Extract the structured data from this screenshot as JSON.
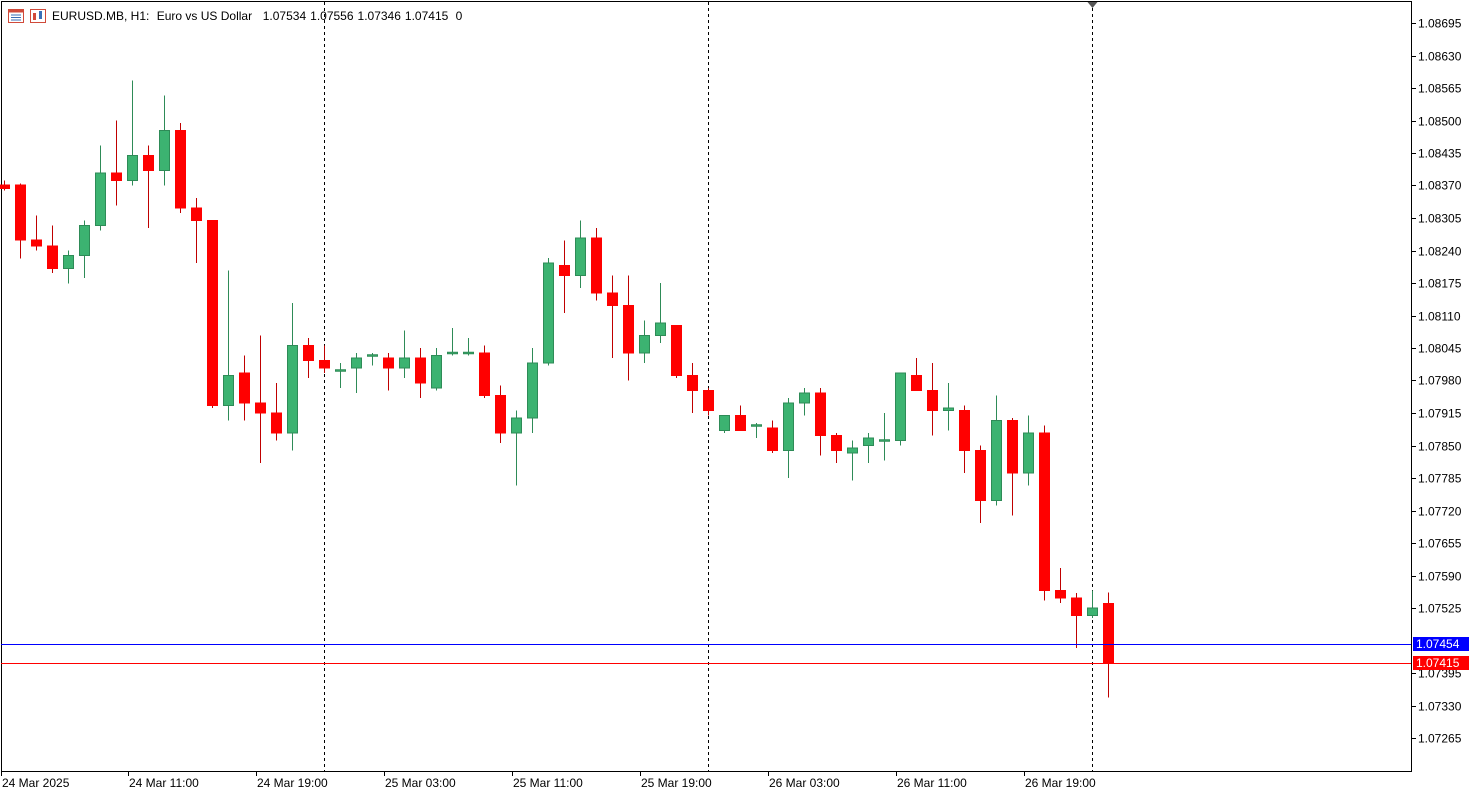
{
  "header": {
    "symbol": "EURUSD.MB, H1:",
    "description": "Euro vs US Dollar",
    "open": "1.07534",
    "high": "1.07556",
    "low": "1.07346",
    "close": "1.07415",
    "volume": "0",
    "icons": [
      "window-list-icon",
      "chart-type-icon"
    ]
  },
  "price_labels": {
    "bid": "1.07415",
    "ask": "1.07454"
  },
  "colors": {
    "bull": "#3cb371",
    "bear": "#ff0000",
    "wick_bull": "#2e8b57",
    "ask_line": "#0000ff",
    "bid_line": "#ff0000",
    "border": "#000000"
  },
  "chart_data": {
    "type": "candlestick",
    "symbol": "EURUSD.MB",
    "timeframe": "H1",
    "ylim": [
      1.0723,
      1.0873
    ],
    "yticks": [
      "1.08695",
      "1.08630",
      "1.08565",
      "1.08500",
      "1.08435",
      "1.08370",
      "1.08305",
      "1.08240",
      "1.08175",
      "1.08110",
      "1.08045",
      "1.07980",
      "1.07915",
      "1.07850",
      "1.07785",
      "1.07720",
      "1.07655",
      "1.07590",
      "1.07525",
      "1.07395",
      "1.07330",
      "1.07265"
    ],
    "xticks": [
      "24 Mar 2025",
      "24 Mar 11:00",
      "24 Mar 19:00",
      "25 Mar 03:00",
      "25 Mar 11:00",
      "25 Mar 19:00",
      "26 Mar 03:00",
      "26 Mar 11:00",
      "26 Mar 19:00"
    ],
    "separators": [
      "24 Mar 20:00",
      "25 Mar 20:00",
      "26 Mar 20:00"
    ],
    "hlines": [
      {
        "name": "ask",
        "price": 1.07454
      },
      {
        "name": "bid",
        "price": 1.07415
      }
    ],
    "candles": [
      {
        "t": "24 Mar 00:00",
        "o": 1.08371,
        "h": 1.0838,
        "l": 1.0836,
        "c": 1.08364
      },
      {
        "t": "24 Mar 01:00",
        "o": 1.08371,
        "h": 1.08374,
        "l": 1.08224,
        "c": 1.08261
      },
      {
        "t": "24 Mar 02:00",
        "o": 1.08261,
        "h": 1.0831,
        "l": 1.0824,
        "c": 1.08249
      },
      {
        "t": "24 Mar 03:00",
        "o": 1.08249,
        "h": 1.0829,
        "l": 1.08195,
        "c": 1.08204
      },
      {
        "t": "24 Mar 04:00",
        "o": 1.08204,
        "h": 1.0824,
        "l": 1.08174,
        "c": 1.0823
      },
      {
        "t": "24 Mar 05:00",
        "o": 1.0823,
        "h": 1.083,
        "l": 1.08185,
        "c": 1.0829
      },
      {
        "t": "24 Mar 06:00",
        "o": 1.0829,
        "h": 1.0845,
        "l": 1.0828,
        "c": 1.08395
      },
      {
        "t": "24 Mar 07:00",
        "o": 1.08395,
        "h": 1.085,
        "l": 1.0833,
        "c": 1.0838
      },
      {
        "t": "24 Mar 08:00",
        "o": 1.0838,
        "h": 1.0858,
        "l": 1.0837,
        "c": 1.0843
      },
      {
        "t": "24 Mar 09:00",
        "o": 1.0843,
        "h": 1.0845,
        "l": 1.08285,
        "c": 1.084
      },
      {
        "t": "24 Mar 10:00",
        "o": 1.084,
        "h": 1.0855,
        "l": 1.0837,
        "c": 1.0848
      },
      {
        "t": "24 Mar 11:00",
        "o": 1.0848,
        "h": 1.08495,
        "l": 1.08315,
        "c": 1.08325
      },
      {
        "t": "24 Mar 12:00",
        "o": 1.08325,
        "h": 1.08345,
        "l": 1.08215,
        "c": 1.083
      },
      {
        "t": "24 Mar 13:00",
        "o": 1.083,
        "h": 1.083,
        "l": 1.07925,
        "c": 1.0793
      },
      {
        "t": "24 Mar 14:00",
        "o": 1.0793,
        "h": 1.082,
        "l": 1.079,
        "c": 1.0799
      },
      {
        "t": "24 Mar 15:00",
        "o": 1.07995,
        "h": 1.0803,
        "l": 1.079,
        "c": 1.07935
      },
      {
        "t": "24 Mar 16:00",
        "o": 1.07935,
        "h": 1.0807,
        "l": 1.07815,
        "c": 1.07915
      },
      {
        "t": "24 Mar 17:00",
        "o": 1.07915,
        "h": 1.07975,
        "l": 1.0786,
        "c": 1.07875
      },
      {
        "t": "24 Mar 18:00",
        "o": 1.07875,
        "h": 1.08135,
        "l": 1.0784,
        "c": 1.0805
      },
      {
        "t": "24 Mar 19:00",
        "o": 1.0805,
        "h": 1.08065,
        "l": 1.07985,
        "c": 1.0802
      },
      {
        "t": "24 Mar 20:00",
        "o": 1.0802,
        "h": 1.0805,
        "l": 1.07995,
        "c": 1.08005
      },
      {
        "t": "24 Mar 21:00",
        "o": 1.08,
        "h": 1.08015,
        "l": 1.07965,
        "c": 1.08
      },
      {
        "t": "24 Mar 22:00",
        "o": 1.08005,
        "h": 1.08035,
        "l": 1.07955,
        "c": 1.08025
      },
      {
        "t": "24 Mar 23:00",
        "o": 1.0803,
        "h": 1.08035,
        "l": 1.0801,
        "c": 1.0803
      },
      {
        "t": "25 Mar 00:00",
        "o": 1.08025,
        "h": 1.08035,
        "l": 1.0796,
        "c": 1.08005
      },
      {
        "t": "25 Mar 01:00",
        "o": 1.08005,
        "h": 1.0808,
        "l": 1.07985,
        "c": 1.08025
      },
      {
        "t": "25 Mar 02:00",
        "o": 1.08025,
        "h": 1.08045,
        "l": 1.07945,
        "c": 1.07975
      },
      {
        "t": "25 Mar 03:00",
        "o": 1.07965,
        "h": 1.08045,
        "l": 1.0796,
        "c": 1.0803
      },
      {
        "t": "25 Mar 04:00",
        "o": 1.08035,
        "h": 1.08085,
        "l": 1.0803,
        "c": 1.08035
      },
      {
        "t": "25 Mar 05:00",
        "o": 1.08035,
        "h": 1.08065,
        "l": 1.0803,
        "c": 1.08035
      },
      {
        "t": "25 Mar 06:00",
        "o": 1.08035,
        "h": 1.0805,
        "l": 1.07945,
        "c": 1.0795
      },
      {
        "t": "25 Mar 07:00",
        "o": 1.0795,
        "h": 1.0797,
        "l": 1.07855,
        "c": 1.07875
      },
      {
        "t": "25 Mar 08:00",
        "o": 1.07875,
        "h": 1.0792,
        "l": 1.0777,
        "c": 1.07905
      },
      {
        "t": "25 Mar 09:00",
        "o": 1.07905,
        "h": 1.08045,
        "l": 1.07875,
        "c": 1.08015
      },
      {
        "t": "25 Mar 10:00",
        "o": 1.08015,
        "h": 1.08225,
        "l": 1.0801,
        "c": 1.08215
      },
      {
        "t": "25 Mar 11:00",
        "o": 1.0821,
        "h": 1.0826,
        "l": 1.08115,
        "c": 1.0819
      },
      {
        "t": "25 Mar 12:00",
        "o": 1.0819,
        "h": 1.083,
        "l": 1.08165,
        "c": 1.08265
      },
      {
        "t": "25 Mar 13:00",
        "o": 1.08265,
        "h": 1.08285,
        "l": 1.0814,
        "c": 1.08155
      },
      {
        "t": "25 Mar 14:00",
        "o": 1.08155,
        "h": 1.0819,
        "l": 1.08025,
        "c": 1.0813
      },
      {
        "t": "25 Mar 15:00",
        "o": 1.0813,
        "h": 1.0819,
        "l": 1.0798,
        "c": 1.08035
      },
      {
        "t": "25 Mar 16:00",
        "o": 1.08035,
        "h": 1.081,
        "l": 1.08015,
        "c": 1.0807
      },
      {
        "t": "25 Mar 17:00",
        "o": 1.0807,
        "h": 1.08175,
        "l": 1.08055,
        "c": 1.08095
      },
      {
        "t": "25 Mar 18:00",
        "o": 1.0809,
        "h": 1.0809,
        "l": 1.07985,
        "c": 1.0799
      },
      {
        "t": "25 Mar 19:00",
        "o": 1.0799,
        "h": 1.08015,
        "l": 1.07915,
        "c": 1.0796
      },
      {
        "t": "25 Mar 20:00",
        "o": 1.0796,
        "h": 1.07965,
        "l": 1.0791,
        "c": 1.0792
      },
      {
        "t": "25 Mar 21:00",
        "o": 1.0788,
        "h": 1.0791,
        "l": 1.07875,
        "c": 1.0791
      },
      {
        "t": "25 Mar 22:00",
        "o": 1.0791,
        "h": 1.0793,
        "l": 1.07885,
        "c": 1.0788
      },
      {
        "t": "25 Mar 23:00",
        "o": 1.0789,
        "h": 1.07895,
        "l": 1.07865,
        "c": 1.0789
      },
      {
        "t": "26 Mar 00:00",
        "o": 1.07885,
        "h": 1.079,
        "l": 1.07835,
        "c": 1.0784
      },
      {
        "t": "26 Mar 01:00",
        "o": 1.0784,
        "h": 1.07945,
        "l": 1.07785,
        "c": 1.07935
      },
      {
        "t": "26 Mar 02:00",
        "o": 1.07935,
        "h": 1.07965,
        "l": 1.0791,
        "c": 1.07955
      },
      {
        "t": "26 Mar 03:00",
        "o": 1.07955,
        "h": 1.07965,
        "l": 1.0783,
        "c": 1.0787
      },
      {
        "t": "26 Mar 04:00",
        "o": 1.0787,
        "h": 1.07875,
        "l": 1.07815,
        "c": 1.0784
      },
      {
        "t": "26 Mar 05:00",
        "o": 1.07835,
        "h": 1.0786,
        "l": 1.0778,
        "c": 1.07845
      },
      {
        "t": "26 Mar 06:00",
        "o": 1.0785,
        "h": 1.07875,
        "l": 1.07815,
        "c": 1.07865
      },
      {
        "t": "26 Mar 07:00",
        "o": 1.0786,
        "h": 1.07915,
        "l": 1.0782,
        "c": 1.0786
      },
      {
        "t": "26 Mar 08:00",
        "o": 1.0786,
        "h": 1.07995,
        "l": 1.0785,
        "c": 1.07995
      },
      {
        "t": "26 Mar 09:00",
        "o": 1.0799,
        "h": 1.08025,
        "l": 1.0796,
        "c": 1.0796
      },
      {
        "t": "26 Mar 10:00",
        "o": 1.0796,
        "h": 1.08015,
        "l": 1.0787,
        "c": 1.0792
      },
      {
        "t": "26 Mar 11:00",
        "o": 1.0792,
        "h": 1.07975,
        "l": 1.0788,
        "c": 1.07925
      },
      {
        "t": "26 Mar 12:00",
        "o": 1.0792,
        "h": 1.0793,
        "l": 1.07795,
        "c": 1.0784
      },
      {
        "t": "26 Mar 13:00",
        "o": 1.0784,
        "h": 1.0785,
        "l": 1.07695,
        "c": 1.0774
      },
      {
        "t": "26 Mar 14:00",
        "o": 1.0774,
        "h": 1.0795,
        "l": 1.0773,
        "c": 1.079
      },
      {
        "t": "26 Mar 15:00",
        "o": 1.079,
        "h": 1.07905,
        "l": 1.0771,
        "c": 1.07795
      },
      {
        "t": "26 Mar 16:00",
        "o": 1.07795,
        "h": 1.0791,
        "l": 1.0777,
        "c": 1.07875
      },
      {
        "t": "26 Mar 17:00",
        "o": 1.07875,
        "h": 1.0789,
        "l": 1.0754,
        "c": 1.0756
      },
      {
        "t": "26 Mar 18:00",
        "o": 1.0756,
        "h": 1.07605,
        "l": 1.07535,
        "c": 1.07545
      },
      {
        "t": "26 Mar 19:00",
        "o": 1.07545,
        "h": 1.07555,
        "l": 1.07445,
        "c": 1.0751
      },
      {
        "t": "26 Mar 20:00",
        "o": 1.0751,
        "h": 1.0756,
        "l": 1.07505,
        "c": 1.07525
      },
      {
        "t": "26 Mar 21:00",
        "o": 1.07534,
        "h": 1.07556,
        "l": 1.07346,
        "c": 1.07415
      }
    ]
  }
}
